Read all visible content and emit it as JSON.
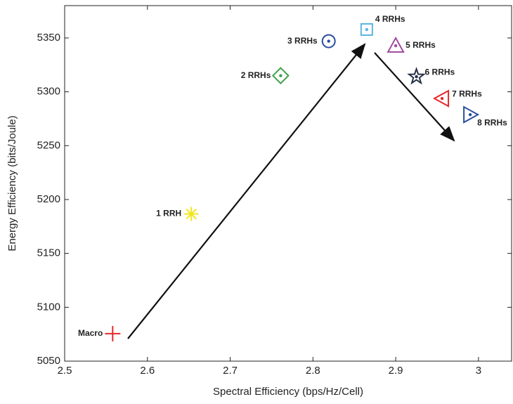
{
  "chart_data": {
    "type": "scatter",
    "xlabel": "Spectral Efficiency (bps/Hz/Cell)",
    "ylabel": "Energy Efficiency (bits/Joule)",
    "xlim": [
      2.5,
      3.04
    ],
    "ylim": [
      5050,
      5380
    ],
    "xticks": [
      2.5,
      2.6,
      2.7,
      2.8,
      2.9,
      3
    ],
    "yticks": [
      5050,
      5100,
      5150,
      5200,
      5250,
      5300,
      5350
    ],
    "series": [
      {
        "name": "Macro",
        "color": "#e8262a",
        "marker": "plus",
        "x": [
          2.558
        ],
        "values": [
          5075.5
        ]
      },
      {
        "name": "1 RRH",
        "color": "#f2e51c",
        "marker": "asterisk",
        "x": [
          2.653
        ],
        "values": [
          5186.6
        ]
      },
      {
        "name": "2 RRHs",
        "color": "#3fa24a",
        "marker": "diamond",
        "x": [
          2.761
        ],
        "values": [
          5315
        ]
      },
      {
        "name": "3 RRHs",
        "color": "#2b4ea2",
        "marker": "circle",
        "x": [
          2.819
        ],
        "values": [
          5347
        ]
      },
      {
        "name": "4 RRHs",
        "color": "#5bb6e0",
        "marker": "square",
        "x": [
          2.865
        ],
        "values": [
          5357.8
        ]
      },
      {
        "name": "5 RRHs",
        "color": "#a24ca0",
        "marker": "triangle-up",
        "x": [
          2.9
        ],
        "values": [
          5342.8
        ]
      },
      {
        "name": "6 RRHs",
        "color": "#283048",
        "marker": "pentagram",
        "x": [
          2.925
        ],
        "values": [
          5314
        ]
      },
      {
        "name": "7 RRHs",
        "color": "#e8262a",
        "marker": "triangle-left",
        "x": [
          2.956
        ],
        "values": [
          5293.8
        ]
      },
      {
        "name": "8 RRHs",
        "color": "#2b4ea2",
        "marker": "triangle-right",
        "x": [
          2.99
        ],
        "values": [
          5278.8
        ]
      }
    ]
  }
}
